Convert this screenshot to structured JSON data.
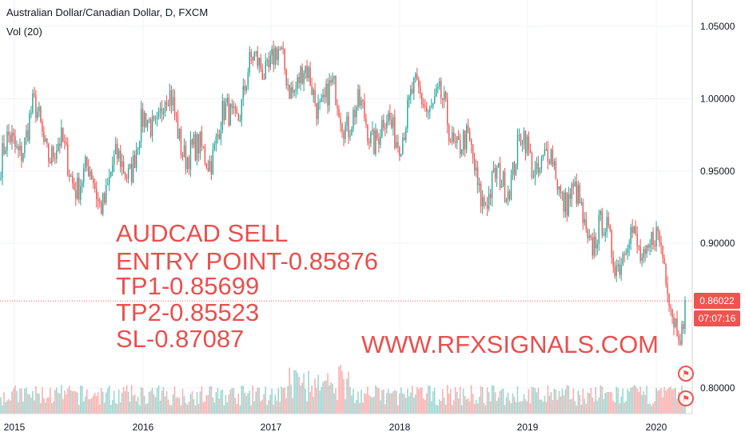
{
  "legend": {
    "title": "Australian Dollar/Canadian Dollar, D, FXCM",
    "volume": "Vol (20)"
  },
  "overlay": {
    "lines": [
      "AUDCAD SELL",
      "ENTRY POINT-0.85876",
      "TP1-0.85699",
      "TP2-0.85523",
      "SL-0.87087"
    ],
    "website": "WWW.RFXSIGNALS.COM"
  },
  "price_tags": {
    "last": "0.86022",
    "countdown": "07:07:16"
  },
  "colors": {
    "up": "#26a69a",
    "down": "#ef5350",
    "overlay_text": "#e8504e",
    "last_price_line": "#ef5350"
  },
  "badges": [
    {
      "icon": "flag-icon"
    },
    {
      "icon": "flag-icon"
    }
  ],
  "chart_data": {
    "type": "candlestick",
    "title": "Australian Dollar/Canadian Dollar, D, FXCM",
    "x_ticks": [
      "2015",
      "2016",
      "2017",
      "2018",
      "2019",
      "2020"
    ],
    "y_ticks": [
      "1.05000",
      "1.00000",
      "0.95000",
      "0.90000",
      "0.80000"
    ],
    "ylim": [
      0.78,
      1.06
    ],
    "last_price": 0.86022,
    "x": [
      "2014-12",
      "2015-03",
      "2015-06",
      "2015-09",
      "2015-12",
      "2016-03",
      "2016-06",
      "2016-09",
      "2016-12",
      "2017-03",
      "2017-06",
      "2017-09",
      "2017-12",
      "2018-03",
      "2018-06",
      "2018-09",
      "2018-12",
      "2019-03",
      "2019-06",
      "2019-09",
      "2019-12",
      "2020-03"
    ],
    "close": [
      0.955,
      0.985,
      0.955,
      0.935,
      0.96,
      1.0,
      0.955,
      0.985,
      1.03,
      1.015,
      1.0,
      0.985,
      0.975,
      1.005,
      0.975,
      0.93,
      0.965,
      0.95,
      0.91,
      0.895,
      0.9,
      0.86
    ],
    "volume_series": "Vol (20)"
  }
}
